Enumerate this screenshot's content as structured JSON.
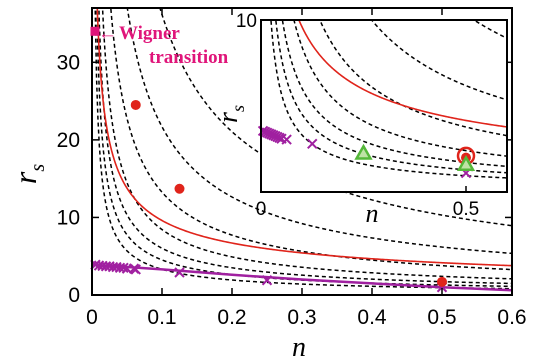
{
  "chart_data": [
    {
      "type": "line",
      "xlabel": "n",
      "ylabel": "r",
      "ylabel_sub": "s",
      "xlim": [
        0,
        0.6
      ],
      "ylim": [
        0,
        37
      ],
      "x_ticks": [
        "0",
        "0.1",
        "0.2",
        "0.3",
        "0.4",
        "0.5",
        "0.6"
      ],
      "y_ticks": [
        "0",
        "10",
        "20",
        "30"
      ],
      "annotation": {
        "line1": "Wigner",
        "line2": "transition",
        "arrow": "←",
        "marker_x": 0.0,
        "marker_y": 34.0
      },
      "colors": {
        "red": "#e0241b",
        "purple": "#a020a0",
        "magenta": "#e0157a",
        "dashed": "#000000"
      },
      "curves": {
        "red_curve": "r_s = 2.9 / n^0.52 (approx.)",
        "dashed_family_prefactors": [
          0.55,
          0.75,
          1.0,
          1.4,
          2.2,
          3.6,
          6.0
        ]
      },
      "series": [
        {
          "marker": "dot",
          "color": "red",
          "points": [
            [
              0.0625,
              24.5
            ],
            [
              0.125,
              13.7
            ],
            [
              0.5,
              1.7
            ]
          ]
        },
        {
          "marker": "x",
          "color": "purple",
          "points": [
            [
              0.005,
              3.9
            ],
            [
              0.01,
              3.8
            ],
            [
              0.015,
              3.75
            ],
            [
              0.02,
              3.7
            ],
            [
              0.025,
              3.7
            ],
            [
              0.03,
              3.6
            ],
            [
              0.035,
              3.6
            ],
            [
              0.04,
              3.5
            ],
            [
              0.045,
              3.5
            ],
            [
              0.05,
              3.4
            ],
            [
              0.06,
              3.4
            ],
            [
              0.0625,
              3.3
            ],
            [
              0.125,
              2.9
            ],
            [
              0.25,
              1.9
            ],
            [
              0.5,
              1.0
            ]
          ]
        },
        {
          "marker": "purple-line",
          "color": "purple",
          "points": [
            [
              0.0,
              3.9
            ],
            [
              0.1,
              3.3
            ],
            [
              0.2,
              2.6
            ],
            [
              0.3,
              2.0
            ],
            [
              0.4,
              1.5
            ],
            [
              0.5,
              1.0
            ],
            [
              0.6,
              0.6
            ]
          ]
        }
      ]
    },
    {
      "type": "line",
      "xlabel": "n",
      "ylabel": "r",
      "ylabel_sub": "s",
      "xlim": [
        0,
        0.6
      ],
      "ylim": [
        0,
        10
      ],
      "x_ticks": [
        "0",
        "0.5"
      ],
      "y_ticks": [
        "10"
      ],
      "series": [
        {
          "marker": "x",
          "color": "purple",
          "points": [
            [
              0.005,
              3.55
            ],
            [
              0.01,
              3.5
            ],
            [
              0.015,
              3.45
            ],
            [
              0.02,
              3.4
            ],
            [
              0.025,
              3.35
            ],
            [
              0.03,
              3.3
            ],
            [
              0.035,
              3.25
            ],
            [
              0.04,
              3.2
            ],
            [
              0.045,
              3.15
            ],
            [
              0.05,
              3.1
            ],
            [
              0.0625,
              3.05
            ],
            [
              0.125,
              2.8
            ],
            [
              0.5,
              1.1
            ]
          ]
        },
        {
          "marker": "dot",
          "color": "red",
          "points": [
            [
              0.5,
              2.0
            ]
          ]
        },
        {
          "marker": "open-circle",
          "color": "red",
          "points": [
            [
              0.5,
              2.1
            ]
          ]
        },
        {
          "marker": "triangle",
          "color": "green",
          "points": [
            [
              0.25,
              2.25
            ],
            [
              0.5,
              1.6
            ]
          ]
        }
      ]
    }
  ]
}
